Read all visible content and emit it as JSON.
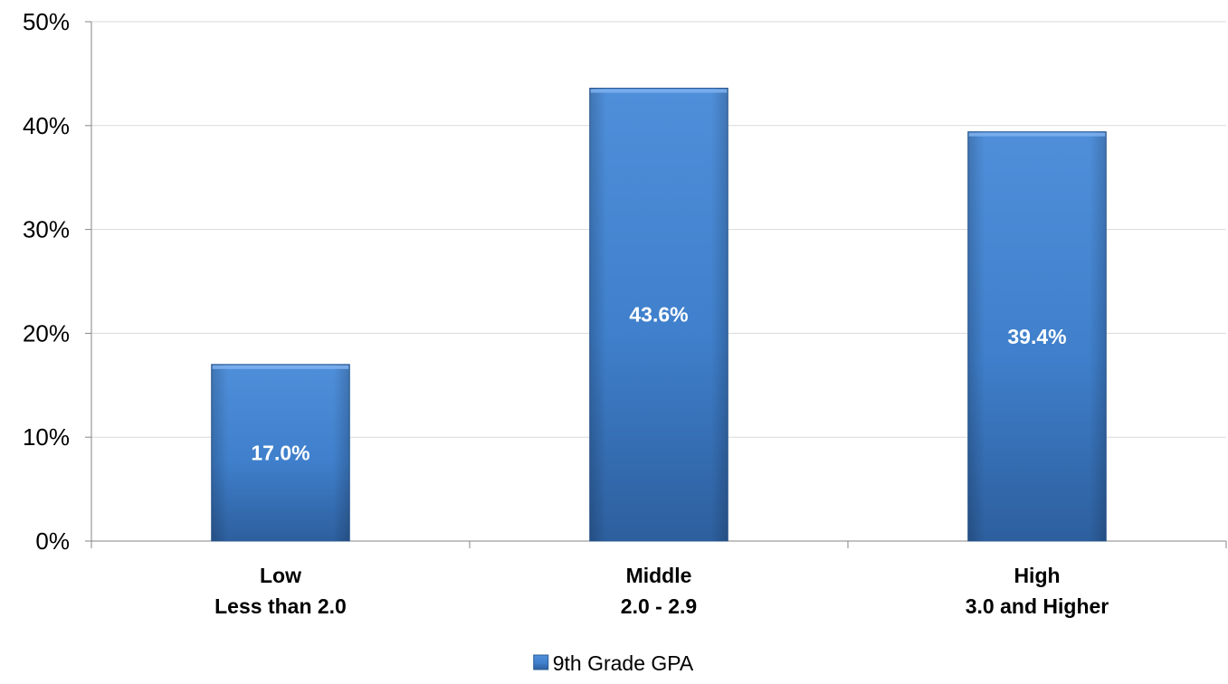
{
  "chart_data": {
    "type": "bar",
    "categories": [
      [
        "Low",
        "Less than 2.0"
      ],
      [
        "Middle",
        "2.0 - 2.9"
      ],
      [
        "High",
        "3.0 and Higher"
      ]
    ],
    "series": [
      {
        "name": "9th Grade GPA",
        "values": [
          17.0,
          43.6,
          39.4
        ],
        "data_labels": [
          "17.0%",
          "43.6%",
          "39.4%"
        ]
      }
    ],
    "y_ticks": [
      "0%",
      "10%",
      "20%",
      "30%",
      "40%",
      "50%"
    ],
    "ylim": [
      0,
      50
    ],
    "grid": true,
    "legend_position": "bottom",
    "colors": {
      "bar_top": "#4F8FDA",
      "bar_mid": "#3F7FCB",
      "bar_bottom": "#2D5F9E",
      "bar_edge": "#2A5A96",
      "gridline": "#D9D9D9",
      "axis": "#868686"
    }
  }
}
